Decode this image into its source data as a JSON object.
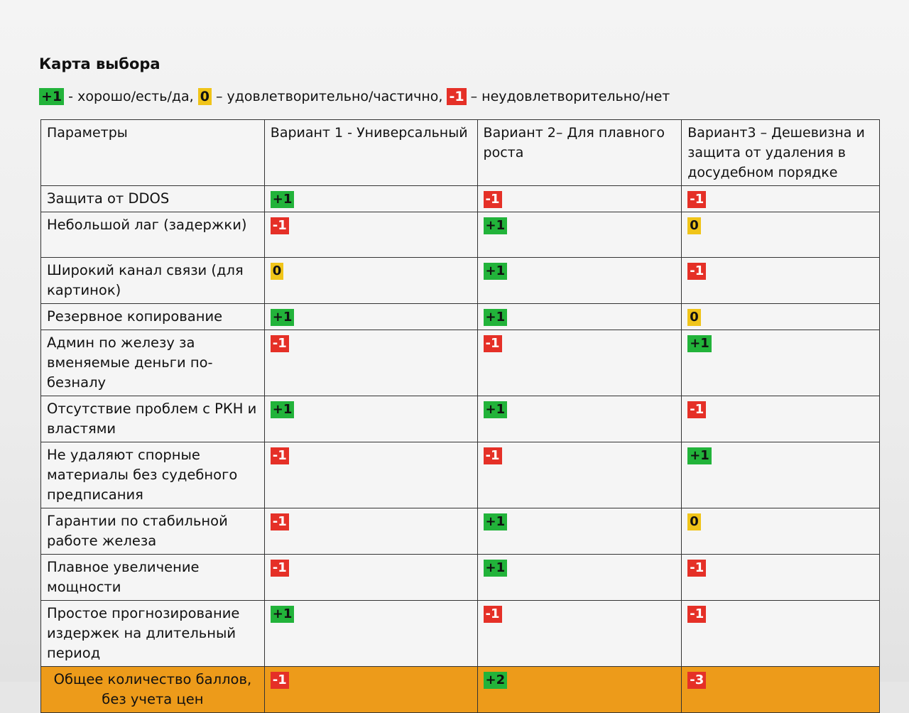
{
  "title": "Карта выбора",
  "legend": {
    "good_badge": "+1",
    "good_text": " - хорошо/есть/да, ",
    "mid_badge": "0",
    "mid_text": " – удовлетворительно/частично, ",
    "bad_badge": "-1",
    "bad_text": " – неудовлетворительно/нет"
  },
  "table": {
    "headers": [
      "Параметры",
      "Вариант 1 - Универсальный",
      "Вариант 2– Для плавного роста",
      "Вариант3 – Дешевизна и защита от удаления в досудебном порядке"
    ],
    "rows": [
      {
        "param": "Защита от DDOS",
        "v1": "+1",
        "v2": "-1",
        "v3": "-1"
      },
      {
        "param": "Небольшой лаг (задержки)",
        "v1": "-1",
        "v2": "+1",
        "v3": "0"
      },
      {
        "param": "Широкий канал связи (для картинок)",
        "v1": "0",
        "v2": "+1",
        "v3": "-1"
      },
      {
        "param": "Резервное копирование",
        "v1": "+1",
        "v2": "+1",
        "v3": "0"
      },
      {
        "param": "Админ по железу за вменяемые деньги по-безналу",
        "v1": "-1",
        "v2": "-1",
        "v3": "+1"
      },
      {
        "param": "Отсутствие проблем с РКН и властями",
        "v1": "+1",
        "v2": "+1",
        "v3": "-1"
      },
      {
        "param": "Не удаляют спорные материалы без судебного предписания",
        "v1": "-1",
        "v2": "-1",
        "v3": "+1"
      },
      {
        "param": "Гарантии по стабильной работе железа",
        "v1": "-1",
        "v2": "+1",
        "v3": "0"
      },
      {
        "param": "Плавное увеличение мощности",
        "v1": "-1",
        "v2": "+1",
        "v3": "-1"
      },
      {
        "param": "Простое прогнозирование издержек на длительный период",
        "v1": "+1",
        "v2": "-1",
        "v3": "-1"
      }
    ],
    "total": {
      "param": "Общее количество баллов, без учета цен",
      "v1": "-1",
      "v2": "+2",
      "v3": "-3"
    }
  }
}
